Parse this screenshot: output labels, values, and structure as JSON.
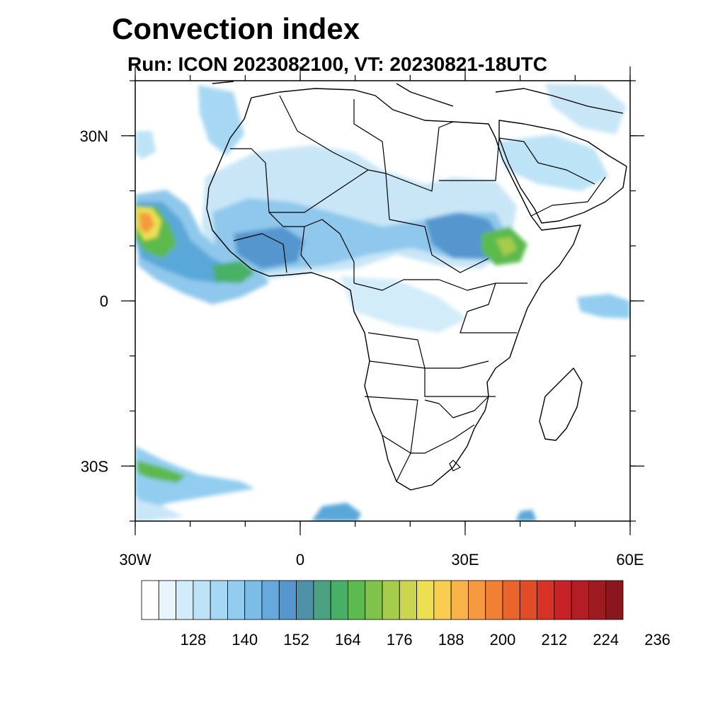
{
  "header": {
    "title": "Convection index",
    "subtitle": "Run: ICON 2023082100,  VT: 20230821-18UTC"
  },
  "map": {
    "domain_lon": [
      -30,
      60
    ],
    "domain_lat": [
      -40,
      40
    ],
    "lon_ticks": [
      {
        "value": -30,
        "label": "30W"
      },
      {
        "value": 0,
        "label": "0"
      },
      {
        "value": 30,
        "label": "30E"
      },
      {
        "value": 60,
        "label": "60E"
      }
    ],
    "lat_ticks": [
      {
        "value": 30,
        "label": "30N"
      },
      {
        "value": 0,
        "label": "0"
      },
      {
        "value": -30,
        "label": "30S"
      }
    ],
    "minor_lon_step": 10,
    "minor_lat_step": 10
  },
  "colorbar": {
    "colors": [
      "#ffffff",
      "#e8f5fc",
      "#d2ecf9",
      "#bde3f6",
      "#a7d8f3",
      "#92cdef",
      "#7cbde8",
      "#66a9dd",
      "#5596cf",
      "#4e91a9",
      "#4aa283",
      "#48b066",
      "#5cba4e",
      "#80c34a",
      "#a6cc4c",
      "#cbd54f",
      "#ecdf52",
      "#f9cd50",
      "#f8b448",
      "#f59a3e",
      "#f17f34",
      "#ea652b",
      "#e14b25",
      "#d63226",
      "#c82127",
      "#b51d25",
      "#9f1b22",
      "#8a171d"
    ],
    "labels": [
      "128",
      "140",
      "152",
      "164",
      "176",
      "188",
      "200",
      "212",
      "224",
      "236"
    ]
  }
}
